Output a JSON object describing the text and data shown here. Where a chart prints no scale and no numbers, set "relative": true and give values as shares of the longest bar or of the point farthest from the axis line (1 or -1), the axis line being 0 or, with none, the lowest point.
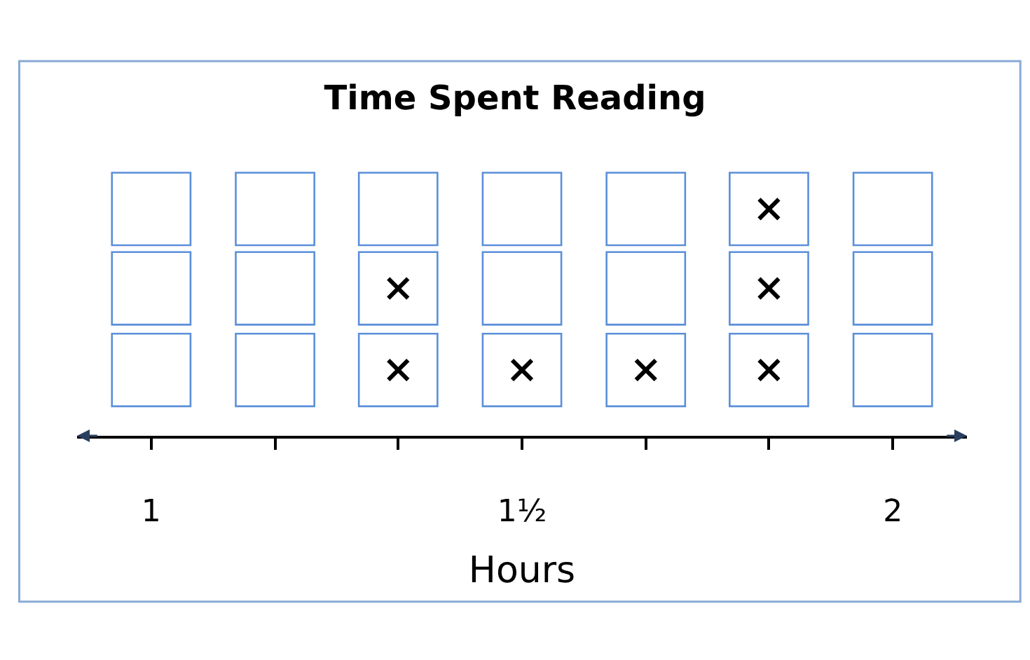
{
  "chart_data": {
    "type": "scatter",
    "title": "Time Spent Reading",
    "xlabel": "Hours",
    "relative": true,
    "marker": "cross",
    "grid": false,
    "series": [
      {
        "color": "#000000",
        "x": [
          1.333,
          1.333,
          1.5,
          1.667,
          1.833,
          1.833,
          1.833
        ],
        "values": [
          0.29,
          0.65,
          0.29,
          0.29,
          0.29,
          0.65,
          1
        ]
      }
    ],
    "xlim": [
      0.9,
      2.1
    ],
    "xticks": [
      {
        "value": 1,
        "label": "1"
      },
      {
        "value": 1.167,
        "label": null
      },
      {
        "value": 1.333,
        "label": null
      },
      {
        "value": 1.5,
        "label": "1½"
      },
      {
        "value": 1.667,
        "label": null
      },
      {
        "value": 1.833,
        "label": null
      },
      {
        "value": 2,
        "label": "2"
      }
    ]
  }
}
